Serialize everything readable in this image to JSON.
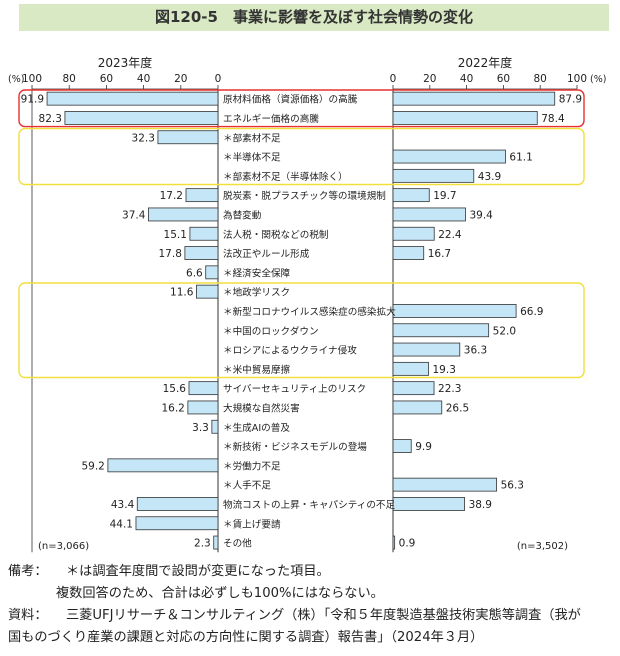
{
  "title": "図120-5　事業に影響を及ぼす社会情勢の変化",
  "chart_data": {
    "type": "bar",
    "orientation": "horizontal-butterfly",
    "left_panel_title": "2023年度",
    "right_panel_title": "2022年度",
    "unit_left": "(%)",
    "unit_right": "(%)",
    "left_ticks": [
      "100",
      "80",
      "60",
      "40",
      "20",
      "0"
    ],
    "right_ticks": [
      "0",
      "20",
      "40",
      "60",
      "80",
      "100"
    ],
    "xlim": [
      0,
      100
    ],
    "left_n": "(n=3,066)",
    "right_n": "(n=3,502)",
    "bar_color": "#c5e6f7",
    "bar_edge_color": "#333333",
    "categories": [
      "原材料価格（資源価格）の高騰",
      "エネルギー価格の高騰",
      "＊部素材不足",
      "＊半導体不足",
      "＊部素材不足（半導体除く）",
      "脱炭素・脱プラスチック等の環境規制",
      "為替変動",
      "法人税・関税などの税制",
      "法改正やルール形成",
      "＊経済安全保障",
      "＊地政学リスク",
      "＊新型コロナウイルス感染症の感染拡大",
      "＊中国のロックダウン",
      "＊ロシアによるウクライナ侵攻",
      "＊米中貿易摩擦",
      "サイバーセキュリティ上のリスク",
      "大規模な自然災害",
      "＊生成AIの普及",
      "＊新技術・ビジネスモデルの登場",
      "＊労働力不足",
      "＊人手不足",
      "物流コストの上昇・キャパシティの不足",
      "＊賃上げ要請",
      "その他"
    ],
    "series": [
      {
        "name": "2023年度",
        "values": [
          91.9,
          82.3,
          32.3,
          null,
          null,
          17.2,
          37.4,
          15.1,
          17.8,
          6.6,
          11.6,
          null,
          null,
          null,
          null,
          15.6,
          16.2,
          3.3,
          null,
          59.2,
          null,
          43.4,
          44.1,
          2.3
        ],
        "labels": [
          "91.9",
          "82.3",
          "32.3",
          "",
          "",
          "17.2",
          "37.4",
          "15.1",
          "17.8",
          "6.6",
          "11.6",
          "",
          "",
          "",
          "",
          "15.6",
          "16.2",
          "3.3",
          "",
          "59.2",
          "",
          "43.4",
          "44.1",
          "2.3"
        ]
      },
      {
        "name": "2022年度",
        "values": [
          87.9,
          78.4,
          null,
          61.1,
          43.9,
          19.7,
          39.4,
          22.4,
          16.7,
          null,
          null,
          66.9,
          52.0,
          36.3,
          19.3,
          22.3,
          26.5,
          null,
          9.9,
          null,
          56.3,
          38.9,
          null,
          0.9
        ],
        "labels": [
          "87.9",
          "78.4",
          "",
          "61.1",
          "43.9",
          "19.7",
          "39.4",
          "22.4",
          "16.7",
          "",
          "",
          "66.9",
          "52.0",
          "36.3",
          "19.3",
          "22.3",
          "26.5",
          "",
          "9.9",
          "",
          "56.3",
          "38.9",
          "",
          "0.9"
        ]
      }
    ],
    "highlight_groups": [
      {
        "from_index": 0,
        "to_index": 1,
        "color": "#e8312f"
      },
      {
        "from_index": 2,
        "to_index": 4,
        "color": "#f2df3a"
      },
      {
        "from_index": 10,
        "to_index": 14,
        "color": "#f2df3a"
      }
    ]
  },
  "notes": [
    {
      "label": "備考：",
      "lines": [
        "＊は調査年度間で設問が変更になった項目。",
        "複数回答のため、合計は必ずしも100%にはならない。"
      ]
    },
    {
      "label": "資料：",
      "lines": [
        "三菱UFJリサーチ＆コンサルティング（株）「令和５年度製造基盤技術実態等調査（我が",
        "国ものづくり産業の課題と対応の方向性に関する調査）報告書」（2024年３月）"
      ]
    }
  ]
}
